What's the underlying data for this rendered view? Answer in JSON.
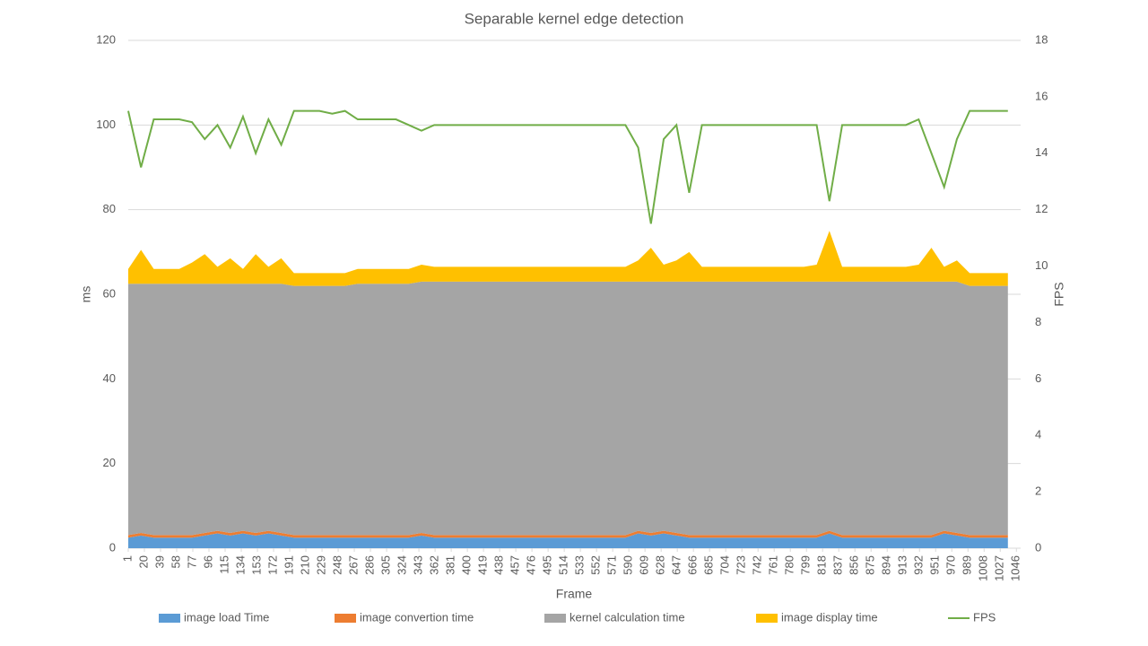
{
  "chart_data": {
    "type": "stacked-area-line",
    "title": "Separable kernel edge detection",
    "xlabel": "Frame",
    "ylabel": "ms",
    "y2label": "FPS",
    "x": [
      1,
      16,
      31,
      46,
      61,
      76,
      91,
      106,
      121,
      136,
      151,
      166,
      181,
      196,
      211,
      226,
      241,
      256,
      271,
      286,
      301,
      316,
      331,
      346,
      361,
      376,
      391,
      406,
      421,
      436,
      451,
      466,
      481,
      496,
      511,
      526,
      541,
      556,
      571,
      586,
      601,
      616,
      631,
      646,
      661,
      676,
      691,
      706,
      721,
      736,
      751,
      766,
      781,
      796,
      811,
      826,
      841,
      856,
      871,
      886,
      901,
      916,
      931,
      946,
      961,
      976,
      991,
      1006,
      1021,
      1036
    ],
    "xlim": [
      1,
      1051
    ],
    "xticks": [
      1,
      20,
      39,
      58,
      77,
      96,
      115,
      134,
      153,
      172,
      191,
      210,
      229,
      248,
      267,
      286,
      305,
      324,
      343,
      362,
      381,
      400,
      419,
      438,
      457,
      476,
      495,
      514,
      533,
      552,
      571,
      590,
      609,
      628,
      647,
      666,
      685,
      704,
      723,
      742,
      761,
      780,
      799,
      818,
      837,
      856,
      875,
      894,
      913,
      932,
      951,
      970,
      989,
      1008,
      1027,
      1046
    ],
    "ylim": [
      0,
      120
    ],
    "yticks": [
      0,
      20,
      40,
      60,
      80,
      100,
      120
    ],
    "y2lim": [
      0,
      18
    ],
    "y2ticks": [
      0,
      2,
      4,
      6,
      8,
      10,
      12,
      14,
      16,
      18
    ],
    "grid": true,
    "legend": "bottom",
    "series": [
      {
        "name": "image load Time",
        "color": "#5b9bd5",
        "stacked": true,
        "values": [
          2.5,
          3,
          2.5,
          2.5,
          2.5,
          2.5,
          3,
          3.5,
          3,
          3.5,
          3,
          3.5,
          3,
          2.5,
          2.5,
          2.5,
          2.5,
          2.5,
          2.5,
          2.5,
          2.5,
          2.5,
          2.5,
          3,
          2.5,
          2.5,
          2.5,
          2.5,
          2.5,
          2.5,
          2.5,
          2.5,
          2.5,
          2.5,
          2.5,
          2.5,
          2.5,
          2.5,
          2.5,
          2.5,
          3.5,
          3,
          3.5,
          3,
          2.5,
          2.5,
          2.5,
          2.5,
          2.5,
          2.5,
          2.5,
          2.5,
          2.5,
          2.5,
          2.5,
          3.5,
          2.5,
          2.5,
          2.5,
          2.5,
          2.5,
          2.5,
          2.5,
          2.5,
          3.5,
          3,
          2.5,
          2.5,
          2.5,
          2.5
        ]
      },
      {
        "name": "image convertion time",
        "color": "#ed7d31",
        "stacked": true,
        "values": [
          0.6,
          0.6,
          0.6,
          0.6,
          0.6,
          0.6,
          0.6,
          0.6,
          0.6,
          0.6,
          0.6,
          0.6,
          0.6,
          0.6,
          0.6,
          0.6,
          0.6,
          0.6,
          0.6,
          0.6,
          0.6,
          0.6,
          0.6,
          0.6,
          0.6,
          0.6,
          0.6,
          0.6,
          0.6,
          0.6,
          0.6,
          0.6,
          0.6,
          0.6,
          0.6,
          0.6,
          0.6,
          0.6,
          0.6,
          0.6,
          0.6,
          0.6,
          0.6,
          0.6,
          0.6,
          0.6,
          0.6,
          0.6,
          0.6,
          0.6,
          0.6,
          0.6,
          0.6,
          0.6,
          0.6,
          0.6,
          0.6,
          0.6,
          0.6,
          0.6,
          0.6,
          0.6,
          0.6,
          0.6,
          0.6,
          0.6,
          0.6,
          0.6,
          0.6,
          0.6
        ]
      },
      {
        "name": "kernel calculation time",
        "color": "#a5a5a5",
        "stacked": true,
        "values": [
          59.4,
          58.9,
          59.4,
          59.4,
          59.4,
          59.4,
          58.9,
          58.4,
          58.9,
          58.4,
          58.9,
          58.4,
          58.9,
          58.9,
          58.9,
          58.9,
          58.9,
          58.9,
          59.4,
          59.4,
          59.4,
          59.4,
          59.4,
          59.4,
          59.9,
          59.9,
          59.9,
          59.9,
          59.9,
          59.9,
          59.9,
          59.9,
          59.9,
          59.9,
          59.9,
          59.9,
          59.9,
          59.9,
          59.9,
          59.9,
          58.9,
          59.4,
          58.9,
          59.4,
          59.9,
          59.9,
          59.9,
          59.9,
          59.9,
          59.9,
          59.9,
          59.9,
          59.9,
          59.9,
          59.9,
          58.9,
          59.9,
          59.9,
          59.9,
          59.9,
          59.9,
          59.9,
          59.9,
          59.9,
          58.9,
          59.4,
          58.9,
          58.9,
          58.9,
          58.9
        ]
      },
      {
        "name": "image display time",
        "color": "#ffc000",
        "stacked": true,
        "values": [
          3.5,
          8,
          3.5,
          3.5,
          3.5,
          5,
          7,
          4,
          6,
          3.5,
          7,
          4,
          6,
          3,
          3,
          3,
          3,
          3,
          3.5,
          3.5,
          3.5,
          3.5,
          3.5,
          4,
          3.5,
          3.5,
          3.5,
          3.5,
          3.5,
          3.5,
          3.5,
          3.5,
          3.5,
          3.5,
          3.5,
          3.5,
          3.5,
          3.5,
          3.5,
          3.5,
          5,
          8,
          4,
          5,
          7,
          3.5,
          3.5,
          3.5,
          3.5,
          3.5,
          3.5,
          3.5,
          3.5,
          3.5,
          4,
          12,
          3.5,
          3.5,
          3.5,
          3.5,
          3.5,
          3.5,
          4,
          8,
          3.5,
          5,
          3,
          3,
          3,
          3
        ]
      },
      {
        "name": "FPS",
        "color": "#70ad47",
        "axis": "y2",
        "values": [
          15.5,
          13.5,
          15.2,
          15.2,
          15.2,
          15.1,
          14.5,
          15.0,
          14.2,
          15.3,
          14.0,
          15.2,
          14.3,
          15.5,
          15.5,
          15.5,
          15.4,
          15.5,
          15.2,
          15.2,
          15.2,
          15.2,
          15.0,
          14.8,
          15.0,
          15.0,
          15.0,
          15.0,
          15.0,
          15.0,
          15.0,
          15.0,
          15.0,
          15.0,
          15.0,
          15.0,
          15.0,
          15.0,
          15.0,
          15.0,
          14.2,
          11.5,
          14.5,
          15.0,
          12.6,
          15.0,
          15.0,
          15.0,
          15.0,
          15.0,
          15.0,
          15.0,
          15.0,
          15.0,
          15.0,
          12.3,
          15.0,
          15.0,
          15.0,
          15.0,
          15.0,
          15.0,
          15.2,
          14.0,
          12.8,
          14.5,
          15.5,
          15.5,
          15.5,
          15.5
        ]
      }
    ]
  }
}
